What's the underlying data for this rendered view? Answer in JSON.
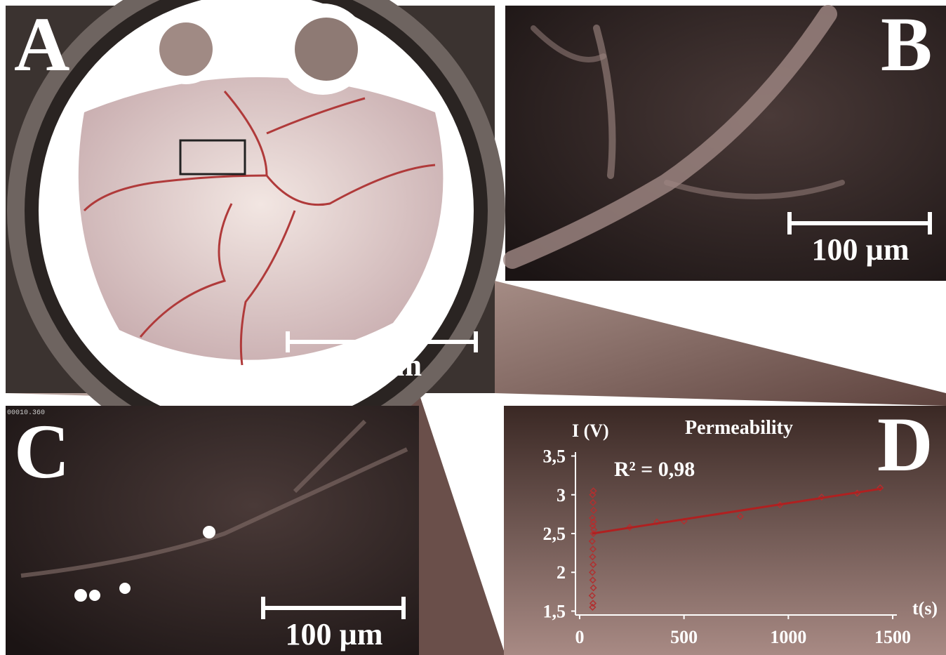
{
  "panels": {
    "a": {
      "label": "A",
      "scale_bar": "5 mm"
    },
    "b": {
      "label": "B",
      "scale_bar": "100 µm"
    },
    "c": {
      "label": "C",
      "scale_bar": "100 µm",
      "timestamp": "00010.360"
    },
    "d": {
      "label": "D"
    }
  },
  "chart_data": {
    "type": "scatter",
    "title": "Permeability",
    "y_label": "I (V)",
    "x_label": "t(s)",
    "annotation": "R² = 0,98",
    "series": [
      {
        "color": "#b03030",
        "x": [
          62,
          64,
          60,
          66,
          63,
          61,
          65,
          62,
          64,
          60,
          66,
          68,
          63,
          65,
          61,
          67,
          64,
          62,
          66,
          240,
          370,
          500,
          770,
          960,
          1160,
          1330,
          1440
        ],
        "values": [
          1.55,
          1.6,
          1.7,
          1.8,
          1.9,
          2.0,
          2.1,
          2.2,
          2.3,
          2.4,
          2.5,
          2.55,
          2.6,
          2.65,
          2.7,
          2.8,
          2.9,
          3.0,
          3.05,
          2.58,
          2.65,
          2.66,
          2.72,
          2.87,
          2.97,
          3.02,
          3.09
        ]
      }
    ],
    "fit": {
      "color": "#b02020",
      "x": [
        60,
        1450
      ],
      "y": [
        2.5,
        3.08
      ]
    },
    "xlim": [
      -20,
      1520
    ],
    "ylim": [
      1.45,
      3.55
    ],
    "xticks": [
      0,
      500,
      1000,
      1500
    ],
    "yticks": [
      {
        "value": 1.5,
        "label": "1,5"
      },
      2,
      {
        "value": 2.5,
        "label": "2,5"
      },
      3,
      {
        "value": 3.5,
        "label": "3,5"
      }
    ]
  }
}
